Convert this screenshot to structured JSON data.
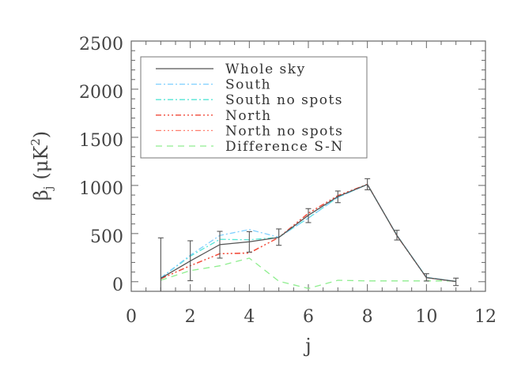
{
  "chart_data": {
    "type": "line",
    "title": "",
    "xlabel": "j",
    "ylabel": "β_j (μK²)",
    "ylabel_parts": {
      "symbol": "β",
      "sub": "j",
      "unit_open": "(μK",
      "unit_sup": "2",
      "unit_close": ")"
    },
    "xlim": [
      0,
      12
    ],
    "ylim": [
      -100,
      2500
    ],
    "x_ticks": [
      0,
      2,
      4,
      6,
      8,
      10,
      12
    ],
    "y_ticks": [
      0,
      500,
      1000,
      1500,
      2000,
      2500
    ],
    "x_tick_labels": [
      "0",
      "2",
      "4",
      "6",
      "8",
      "10",
      "12"
    ],
    "y_tick_labels": [
      "0",
      "500",
      "1000",
      "1500",
      "2000",
      "2500"
    ],
    "grid": false,
    "legend_position": "upper left",
    "x": [
      1,
      2,
      3,
      4,
      5,
      6,
      7,
      8,
      9,
      10,
      11
    ],
    "series": [
      {
        "name": "Whole sky",
        "color": "#555555",
        "dash": "",
        "values": [
          35,
          215,
          385,
          415,
          460,
          690,
          885,
          1010,
          480,
          42,
          2
        ],
        "error_low": [
          -100,
          10,
          245,
          307,
          378,
          614,
          821,
          955,
          433,
          7,
          -40
        ],
        "error_high": [
          455,
          425,
          523,
          520,
          548,
          759,
          942,
          1070,
          534,
          83,
          37
        ]
      },
      {
        "name": "South",
        "color": "#7fd0ff",
        "dash": "7,3,2,3",
        "values": [
          40,
          275,
          480,
          542,
          462,
          660,
          875,
          1010,
          482,
          45,
          3
        ]
      },
      {
        "name": "South no spots",
        "color": "#55e6d6",
        "dash": "7,3,2,3",
        "values": [
          40,
          265,
          440,
          435,
          462,
          662,
          878,
          1010,
          482,
          45,
          3
        ]
      },
      {
        "name": "North",
        "color": "#f04a3a",
        "dash": "7,3,2,3,2,3,2,3",
        "values": [
          30,
          165,
          290,
          296,
          460,
          712,
          895,
          1012,
          478,
          42,
          2
        ]
      },
      {
        "name": "North no spots",
        "color": "#ff8070",
        "dash": "7,3,2,3,2,3,2,3",
        "values": [
          30,
          168,
          292,
          300,
          460,
          710,
          893,
          1012,
          478,
          42,
          2
        ]
      },
      {
        "name": "Difference S-N",
        "color": "#8fee8f",
        "dash": "8,6",
        "values": [
          15,
          115,
          165,
          245,
          5,
          -70,
          15,
          8,
          8,
          8,
          8
        ]
      }
    ]
  }
}
